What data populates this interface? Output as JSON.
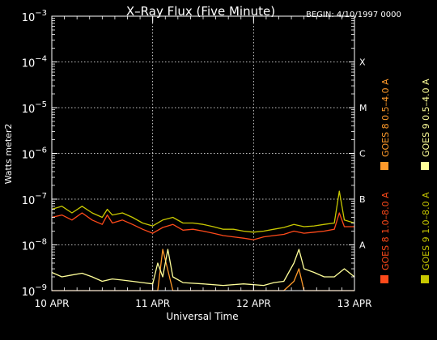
{
  "chart_data": {
    "type": "line",
    "title": "X–Ray Flux (Five Minute)",
    "begin_label": "BEGIN: 4/10/1997 0000",
    "xlabel": "Universal Time",
    "ylabel": "Watts meter2",
    "x_ticks": [
      "10 APR",
      "11 APR",
      "12 APR",
      "13 APR"
    ],
    "xlim_days": [
      0,
      3
    ],
    "y_scale": "log",
    "ylim": [
      1e-09,
      0.001
    ],
    "y_ticks": [
      {
        "base": "10",
        "exp": "−3"
      },
      {
        "base": "10",
        "exp": "−4"
      },
      {
        "base": "10",
        "exp": "−5"
      },
      {
        "base": "10",
        "exp": "−6"
      },
      {
        "base": "10",
        "exp": "−7"
      },
      {
        "base": "10",
        "exp": "−8"
      },
      {
        "base": "10",
        "exp": "−9"
      }
    ],
    "flare_classes": [
      {
        "label": "X",
        "level": 0.0001
      },
      {
        "label": "M",
        "level": 1e-05
      },
      {
        "label": "C",
        "level": 1e-06
      },
      {
        "label": "B",
        "level": 1e-07
      },
      {
        "label": "A",
        "level": 1e-08
      }
    ],
    "grid": true,
    "series": [
      {
        "name": "GOES 8 1.0–8.0 A",
        "color": "#ff4a1a",
        "x": [
          0,
          0.1,
          0.2,
          0.3,
          0.4,
          0.5,
          0.55,
          0.6,
          0.7,
          0.8,
          0.9,
          1.0,
          1.1,
          1.2,
          1.3,
          1.4,
          1.5,
          1.6,
          1.7,
          1.8,
          1.9,
          2.0,
          2.1,
          2.2,
          2.3,
          2.4,
          2.5,
          2.6,
          2.7,
          2.8,
          2.85,
          2.9,
          3.0
        ],
        "y": [
          4e-08,
          4.5e-08,
          3.5e-08,
          5e-08,
          3.5e-08,
          2.8e-08,
          4.5e-08,
          3e-08,
          3.5e-08,
          2.8e-08,
          2.2e-08,
          1.8e-08,
          2.4e-08,
          2.8e-08,
          2.1e-08,
          2.2e-08,
          2e-08,
          1.8e-08,
          1.6e-08,
          1.5e-08,
          1.4e-08,
          1.3e-08,
          1.5e-08,
          1.6e-08,
          1.7e-08,
          2e-08,
          1.8e-08,
          1.9e-08,
          2e-08,
          2.2e-08,
          5e-08,
          2.5e-08,
          2.5e-08
        ]
      },
      {
        "name": "GOES 8 0.5–4.0 A",
        "color": "#ff9a2a",
        "x": [
          0,
          0.3,
          0.6,
          0.9,
          1.05,
          1.1,
          1.2,
          1.5,
          1.9,
          2.3,
          2.4,
          2.45,
          2.5,
          2.6,
          2.9,
          3.0
        ],
        "y": [
          1e-09,
          1e-09,
          1e-09,
          1e-09,
          1e-09,
          8e-09,
          1e-09,
          1e-09,
          1e-09,
          1e-09,
          1.6e-09,
          3e-09,
          1e-09,
          1e-09,
          1e-09,
          1e-09
        ]
      },
      {
        "name": "GOES 9 1.0–8.0 A",
        "color": "#c8c800",
        "x": [
          0,
          0.1,
          0.2,
          0.3,
          0.4,
          0.5,
          0.55,
          0.6,
          0.7,
          0.8,
          0.9,
          1.0,
          1.1,
          1.2,
          1.3,
          1.4,
          1.5,
          1.6,
          1.7,
          1.8,
          1.9,
          2.0,
          2.1,
          2.2,
          2.3,
          2.4,
          2.5,
          2.6,
          2.7,
          2.8,
          2.85,
          2.9,
          3.0
        ],
        "y": [
          6e-08,
          7e-08,
          5e-08,
          7e-08,
          5e-08,
          4e-08,
          6e-08,
          4.5e-08,
          5e-08,
          4e-08,
          3e-08,
          2.6e-08,
          3.5e-08,
          4e-08,
          3e-08,
          3e-08,
          2.8e-08,
          2.5e-08,
          2.2e-08,
          2.2e-08,
          2e-08,
          1.9e-08,
          2e-08,
          2.2e-08,
          2.4e-08,
          2.8e-08,
          2.5e-08,
          2.6e-08,
          2.8e-08,
          3e-08,
          1.5e-07,
          3.5e-08,
          3e-08
        ]
      },
      {
        "name": "GOES 9 0.5–4.0 A",
        "color": "#ffff99",
        "x": [
          0,
          0.1,
          0.2,
          0.3,
          0.4,
          0.5,
          0.6,
          0.7,
          0.8,
          0.9,
          1.0,
          1.05,
          1.1,
          1.15,
          1.2,
          1.3,
          1.5,
          1.7,
          1.9,
          2.1,
          2.2,
          2.3,
          2.4,
          2.45,
          2.5,
          2.6,
          2.7,
          2.8,
          2.9,
          3.0
        ],
        "y": [
          2.5e-09,
          2e-09,
          2.2e-09,
          2.4e-09,
          2e-09,
          1.6e-09,
          1.8e-09,
          1.7e-09,
          1.6e-09,
          1.5e-09,
          1.4e-09,
          4e-09,
          2e-09,
          8e-09,
          2e-09,
          1.5e-09,
          1.4e-09,
          1.3e-09,
          1.4e-09,
          1.3e-09,
          1.5e-09,
          1.6e-09,
          4e-09,
          8e-09,
          3e-09,
          2.5e-09,
          2e-09,
          2e-09,
          3e-09,
          2e-09
        ]
      }
    ]
  }
}
